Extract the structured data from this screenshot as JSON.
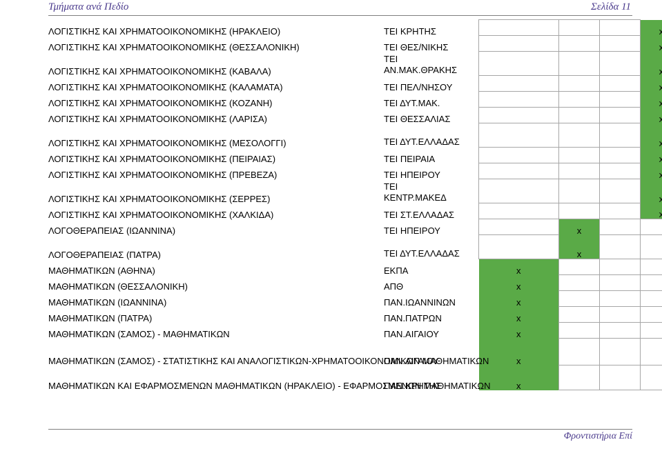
{
  "header": {
    "left": "Τμήματα ανά Πεδίο",
    "right": "Σελίδα 11"
  },
  "footer": {
    "text": "Φροντιστήρια Επί"
  },
  "rows": [
    {
      "dept": "ΛΟΓΙΣΤΙΚΗΣ ΚΑΙ ΧΡΗΜΑΤΟΟΙΚΟΝΟΜΙΚΗΣ (ΗΡΑΚΛΕΙΟ)",
      "inst": "ΤΕΙ ΚΡΗΤΗΣ",
      "mark": "x",
      "col": 4
    },
    {
      "dept": "ΛΟΓΙΣΤΙΚΗΣ ΚΑΙ ΧΡΗΜΑΤΟΟΙΚΟΝΟΜΙΚΗΣ (ΘΕΣΣΑΛΟΝΙΚΗ)",
      "inst": "ΤΕΙ ΘΕΣ/ΝΙΚΗΣ",
      "mark": "x",
      "col": 4
    },
    {
      "dept": "ΛΟΓΙΣΤΙΚΗΣ ΚΑΙ ΧΡΗΜΑΤΟΟΙΚΟΝΟΜΙΚΗΣ (ΚΑΒΑΛΑ)",
      "inst": "ΤΕΙ ΑΝ.ΜΑΚ.ΘΡΑΚΗΣ",
      "mark": "x",
      "col": 4
    },
    {
      "dept": "ΛΟΓΙΣΤΙΚΗΣ ΚΑΙ ΧΡΗΜΑΤΟΟΙΚΟΝΟΜΙΚΗΣ (ΚΑΛΑΜΑΤΑ)",
      "inst": "ΤΕΙ ΠΕΛ/ΝΗΣΟΥ",
      "mark": "x",
      "col": 4
    },
    {
      "dept": "ΛΟΓΙΣΤΙΚΗΣ ΚΑΙ ΧΡΗΜΑΤΟΟΙΚΟΝΟΜΙΚΗΣ (ΚΟΖΑΝΗ)",
      "inst": "ΤΕΙ ΔΥΤ.ΜΑΚ.",
      "mark": "x",
      "col": 4
    },
    {
      "dept": "ΛΟΓΙΣΤΙΚΗΣ ΚΑΙ ΧΡΗΜΑΤΟΟΙΚΟΝΟΜΙΚΗΣ (ΛΑΡΙΣΑ)",
      "inst": "ΤΕΙ ΘΕΣΣΑΛΙΑΣ",
      "mark": "x",
      "col": 4
    },
    {
      "dept": "ΛΟΓΙΣΤΙΚΗΣ ΚΑΙ ΧΡΗΜΑΤΟΟΙΚΟΝΟΜΙΚΗΣ (ΜΕΣΟΛΟΓΓΙ)",
      "inst": "ΤΕΙ ΔΥΤ.ΕΛΛΑΔΑΣ",
      "mark": "x",
      "col": 4
    },
    {
      "dept": "ΛΟΓΙΣΤΙΚΗΣ ΚΑΙ ΧΡΗΜΑΤΟΟΙΚΟΝΟΜΙΚΗΣ (ΠΕΙΡΑΙΑΣ)",
      "inst": "ΤΕΙ ΠΕΙΡΑΙΑ",
      "mark": "x",
      "col": 4
    },
    {
      "dept": "ΛΟΓΙΣΤΙΚΗΣ ΚΑΙ ΧΡΗΜΑΤΟΟΙΚΟΝΟΜΙΚΗΣ (ΠΡΕΒΕΖΑ)",
      "inst": "ΤΕΙ ΗΠΕΙΡΟΥ",
      "mark": "x",
      "col": 4
    },
    {
      "dept": "ΛΟΓΙΣΤΙΚΗΣ ΚΑΙ ΧΡΗΜΑΤΟΟΙΚΟΝΟΜΙΚΗΣ (ΣΕΡΡΕΣ)",
      "inst": "ΤΕΙ ΚΕΝΤΡ.ΜΑΚΕΔ",
      "mark": "x",
      "col": 4
    },
    {
      "dept": "ΛΟΓΙΣΤΙΚΗΣ ΚΑΙ ΧΡΗΜΑΤΟΟΙΚΟΝΟΜΙΚΗΣ (ΧΑΛΚΙΔΑ)",
      "inst": "ΤΕΙ ΣΤ.ΕΛΛΑΔΑΣ",
      "mark": "x",
      "col": 4
    },
    {
      "dept": "ΛΟΓΟΘΕΡΑΠΕΙΑΣ (ΙΩΑΝΝΙΝΑ)",
      "inst": "ΤΕΙ ΗΠΕΙΡΟΥ",
      "mark": "x",
      "col": 2
    },
    {
      "dept": "ΛΟΓΟΘΕΡΑΠΕΙΑΣ (ΠΑΤΡΑ)",
      "inst": "ΤΕΙ ΔΥΤ.ΕΛΛΑΔΑΣ",
      "mark": "x",
      "col": 2
    },
    {
      "dept": "ΜΑΘΗΜΑΤΙΚΩΝ (ΑΘΗΝΑ)",
      "inst": "ΕΚΠΑ",
      "mark": "x",
      "col": 1
    },
    {
      "dept": "ΜΑΘΗΜΑΤΙΚΩΝ (ΘΕΣΣΑΛΟΝΙΚΗ)",
      "inst": "ΑΠΘ",
      "mark": "x",
      "col": 1
    },
    {
      "dept": "ΜΑΘΗΜΑΤΙΚΩΝ (ΙΩΑΝΝΙΝΑ)",
      "inst": "ΠΑΝ.ΙΩΑΝΝΙΝΩΝ",
      "mark": "x",
      "col": 1
    },
    {
      "dept": "ΜΑΘΗΜΑΤΙΚΩΝ (ΠΑΤΡΑ)",
      "inst": "ΠΑΝ.ΠΑΤΡΩΝ",
      "mark": "x",
      "col": 1
    },
    {
      "dept": "ΜΑΘΗΜΑΤΙΚΩΝ (ΣΑΜΟΣ) - ΜΑΘΗΜΑΤΙΚΩΝ",
      "inst": "ΠΑΝ.ΑΙΓΑΙΟΥ",
      "mark": "x",
      "col": 1
    },
    {
      "dept": "ΜΑΘΗΜΑΤΙΚΩΝ (ΣΑΜΟΣ) - ΣΤΑΤΙΣΤΙΚΗΣ ΚΑΙ ΑΝΑΛΟΓΙΣΤΙΚΩΝ-ΧΡΗΜΑΤΟΟΙΚΟΝΟΜΙΚΩΝ ΜΑΘΗΜΑΤΙΚΩΝ",
      "inst": "ΠΑΝ.ΑΙΓΑΙΟΥ",
      "mark": "x",
      "col": 1
    },
    {
      "dept": "ΜΑΘΗΜΑΤΙΚΩΝ ΚΑΙ ΕΦΑΡΜΟΣΜΕΝΩΝ ΜΑΘΗΜΑΤΙΚΩΝ (ΗΡΑΚΛΕΙΟ) - ΕΦΑΡΜΟΣΜΕΝΩΝ ΜΑΘΗΜΑΤΙΚΩΝ",
      "inst": "ΠΑΝ.ΚΡΗΤΗΣ",
      "mark": "x",
      "col": 1
    }
  ],
  "colors": {
    "green": "#5aaa47",
    "grid": "#a6a6a6",
    "header_text": "#4a3a8c"
  }
}
